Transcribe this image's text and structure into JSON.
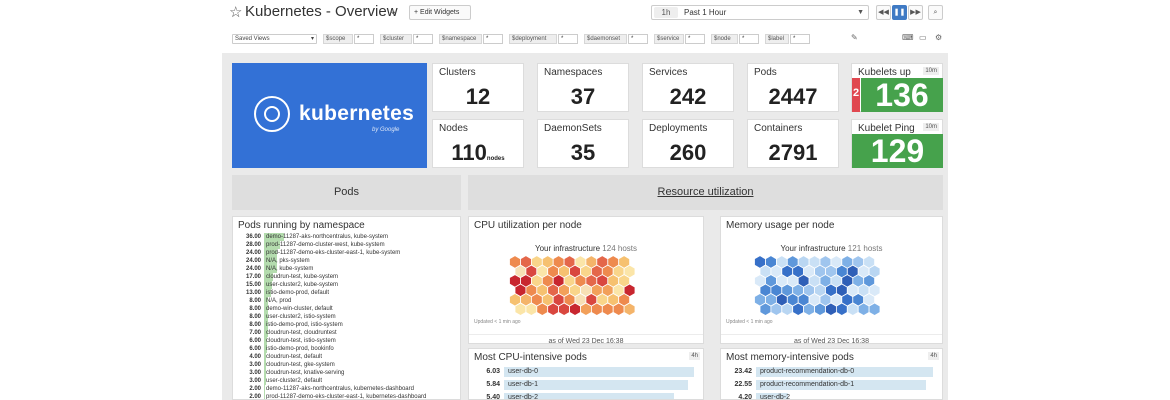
{
  "header": {
    "title": "Kubernetes - Overview",
    "edit_widgets": "Edit Widgets",
    "time_badge": "1h",
    "time_range": "Past 1 Hour"
  },
  "filters": {
    "saved_views": "Saved Views",
    "vars": [
      {
        "key": "$scope",
        "value": "*"
      },
      {
        "key": "$cluster",
        "value": "*"
      },
      {
        "key": "$namespace",
        "value": "*"
      },
      {
        "key": "$deployment",
        "value": "*"
      },
      {
        "key": "$daemonset",
        "value": "*"
      },
      {
        "key": "$service",
        "value": "*"
      },
      {
        "key": "$node",
        "value": "*"
      },
      {
        "key": "$label",
        "value": "*"
      }
    ]
  },
  "logo": {
    "name": "kubernetes",
    "sub": "by Google"
  },
  "stats": {
    "clusters": {
      "label": "Clusters",
      "value": "12"
    },
    "namespaces": {
      "label": "Namespaces",
      "value": "37"
    },
    "services": {
      "label": "Services",
      "value": "242"
    },
    "pods": {
      "label": "Pods",
      "value": "2447"
    },
    "nodes": {
      "label": "Nodes",
      "value": "110",
      "unit": "nodes"
    },
    "daemonsets": {
      "label": "DaemonSets",
      "value": "35"
    },
    "deployments": {
      "label": "Deployments",
      "value": "260"
    },
    "containers": {
      "label": "Containers",
      "value": "2791"
    },
    "kubelets_up": {
      "label": "Kubelets up",
      "tag": "10m",
      "value": "136",
      "down": "2"
    },
    "kubelet_ping": {
      "label": "Kubelet Ping",
      "tag": "10m",
      "value": "129"
    }
  },
  "sections": {
    "pods": "Pods",
    "resource": "Resource utilization"
  },
  "pods_by_ns": {
    "title": "Pods running by namespace",
    "rows": [
      {
        "value": 36.0,
        "label": "36.00",
        "name": "demo-11287-aks-northcentralus, kube-system"
      },
      {
        "value": 28.0,
        "label": "28.00",
        "name": "prod-11287-demo-cluster-west, kube-system"
      },
      {
        "value": 24.0,
        "label": "24.00",
        "name": "prod-11287-demo-eks-cluster-east-1, kube-system"
      },
      {
        "value": 24.0,
        "label": "24.00",
        "name": "N/A, pks-system"
      },
      {
        "value": 24.0,
        "label": "24.00",
        "name": "N/A, kube-system"
      },
      {
        "value": 17.0,
        "label": "17.00",
        "name": "cloudrun-test, kube-system"
      },
      {
        "value": 15.0,
        "label": "15.00",
        "name": "user-cluster2, kube-system"
      },
      {
        "value": 13.0,
        "label": "13.00",
        "name": "istio-demo-prod, default"
      },
      {
        "value": 8.0,
        "label": "8.00",
        "name": "N/A, prod"
      },
      {
        "value": 8.0,
        "label": "8.00",
        "name": "demo-win-cluster, default"
      },
      {
        "value": 8.0,
        "label": "8.00",
        "name": "user-cluster2, istio-system"
      },
      {
        "value": 8.0,
        "label": "8.00",
        "name": "istio-demo-prod, istio-system"
      },
      {
        "value": 7.0,
        "label": "7.00",
        "name": "cloudrun-test, cloudruntest"
      },
      {
        "value": 6.0,
        "label": "6.00",
        "name": "cloudrun-test, istio-system"
      },
      {
        "value": 6.0,
        "label": "6.00",
        "name": "istio-demo-prod, bookinfo"
      },
      {
        "value": 4.0,
        "label": "4.00",
        "name": "cloudrun-test, default"
      },
      {
        "value": 3.0,
        "label": "3.00",
        "name": "cloudrun-test, gke-system"
      },
      {
        "value": 3.0,
        "label": "3.00",
        "name": "cloudrun-test, knative-serving"
      },
      {
        "value": 3.0,
        "label": "3.00",
        "name": "user-cluster2, default"
      },
      {
        "value": 2.0,
        "label": "2.00",
        "name": "demo-11287-aks-northcentralus, kubernetes-dashboard"
      },
      {
        "value": 2.0,
        "label": "2.00",
        "name": "prod-11287-demo-eks-cluster-east-1, kubernetes-dashboard"
      }
    ]
  },
  "cpu_map": {
    "title": "CPU utilization per node",
    "infra": "Your infrastructure",
    "hosts": "124 hosts",
    "updated": "Updated < 1 min ago",
    "asof": "as of Wed 23 Dec 16:38"
  },
  "mem_map": {
    "title": "Memory usage per node",
    "infra": "Your infrastructure",
    "hosts": "121 hosts",
    "updated": "Updated < 1 min ago",
    "asof": "as of Wed 23 Dec 16:38"
  },
  "cpu_pods": {
    "title": "Most CPU-intensive pods",
    "tag": "4h",
    "rows": [
      {
        "value": 6.03,
        "label": "6.03",
        "name": "user-db-0"
      },
      {
        "value": 5.84,
        "label": "5.84",
        "name": "user-db-1"
      },
      {
        "value": 5.4,
        "label": "5.40",
        "name": "user-db-2"
      }
    ]
  },
  "mem_pods": {
    "title": "Most memory-intensive pods",
    "tag": "4h",
    "rows": [
      {
        "value": 23.42,
        "label": "23.42",
        "name": "product-recommendation-db-0"
      },
      {
        "value": 22.55,
        "label": "22.55",
        "name": "product-recommendation-db-1"
      },
      {
        "value": 4.2,
        "label": "4.20",
        "name": "user-db-2"
      }
    ]
  },
  "colors": {
    "kube_blue": "#3371d6",
    "ok_green": "#46a24c",
    "alert_red": "#e04850",
    "accent": "#3f7ac4"
  }
}
